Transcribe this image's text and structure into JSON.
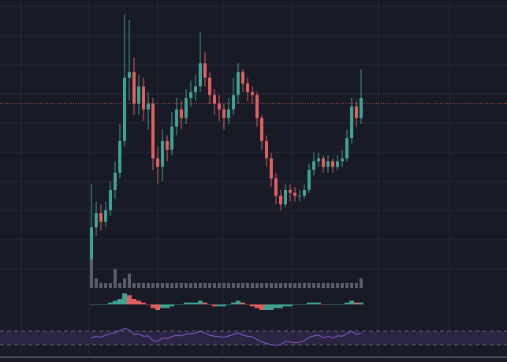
{
  "chart_data": [
    {
      "type": "candlestick",
      "grid": true,
      "ylim": [
        0,
        100
      ],
      "up_color": "#3fa394",
      "down_color": "#e0605f",
      "price_line": 64,
      "price_line_color": "#e0605f",
      "open": [
        5,
        21,
        26,
        23,
        27,
        34,
        40,
        51,
        73,
        75,
        64,
        70,
        62,
        64,
        45,
        42,
        51,
        48,
        56,
        62,
        59,
        66,
        68,
        70,
        78,
        73,
        67,
        64,
        62,
        59,
        62,
        67,
        75,
        71,
        68,
        67,
        59,
        51,
        45,
        38,
        32,
        29,
        34,
        33,
        32,
        32,
        34,
        41,
        44,
        45,
        42,
        44,
        42,
        44,
        45,
        52,
        63,
        59
      ],
      "high": [
        36,
        30,
        29,
        30,
        37,
        44,
        57,
        95,
        93,
        80,
        74,
        73,
        68,
        66,
        49,
        55,
        53,
        61,
        66,
        65,
        69,
        72,
        74,
        89,
        82,
        75,
        69,
        67,
        64,
        66,
        73,
        78,
        76,
        73,
        70,
        68,
        60,
        53,
        47,
        40,
        34,
        36,
        36,
        35,
        34,
        36,
        43,
        47,
        47,
        46,
        46,
        45,
        46,
        48,
        55,
        66,
        65,
        76
      ],
      "low": [
        4,
        18,
        20,
        21,
        25,
        31,
        38,
        49,
        65,
        60,
        60,
        58,
        55,
        41,
        36,
        37,
        44,
        46,
        53,
        55,
        57,
        63,
        65,
        68,
        70,
        64,
        60,
        58,
        55,
        57,
        60,
        64,
        68,
        65,
        64,
        56,
        48,
        42,
        35,
        29,
        27,
        28,
        30,
        30,
        30,
        31,
        33,
        39,
        42,
        40,
        40,
        40,
        41,
        42,
        44,
        50,
        56,
        57
      ],
      "close": [
        21,
        26,
        23,
        27,
        34,
        40,
        51,
        73,
        75,
        64,
        70,
        62,
        64,
        45,
        42,
        51,
        48,
        56,
        62,
        59,
        66,
        68,
        70,
        78,
        73,
        67,
        64,
        62,
        59,
        62,
        67,
        75,
        71,
        68,
        67,
        59,
        51,
        45,
        38,
        32,
        29,
        34,
        33,
        32,
        32,
        34,
        41,
        44,
        45,
        42,
        44,
        42,
        44,
        45,
        52,
        63,
        59,
        66
      ]
    },
    {
      "type": "volume",
      "ylim": [
        0,
        10
      ],
      "color": "#5a5d6b",
      "values": [
        6,
        2,
        1,
        1,
        1,
        4,
        1,
        2,
        3,
        1,
        1,
        1,
        1,
        1,
        1,
        1,
        1,
        1,
        1,
        1,
        1,
        1,
        1,
        1,
        1,
        1,
        1,
        1,
        1,
        1,
        1,
        1,
        1,
        1,
        1,
        1,
        1,
        1,
        1,
        1,
        1,
        1,
        1,
        1,
        1,
        1,
        1,
        1,
        1,
        1,
        1,
        1,
        1,
        1,
        1,
        1,
        1,
        2
      ]
    },
    {
      "type": "histogram",
      "ylim": [
        -6,
        6
      ],
      "up_color": "#3fa394",
      "down_color": "#e0605f",
      "values": [
        0,
        0,
        0,
        0,
        1,
        2,
        3,
        6,
        5,
        3,
        2,
        1,
        0,
        -2,
        -3,
        -2,
        -2,
        -1,
        0,
        0,
        1,
        1,
        1,
        2,
        1,
        0,
        -1,
        -1,
        -1,
        0,
        1,
        2,
        1,
        0,
        -1,
        -2,
        -3,
        -3,
        -3,
        -2,
        -2,
        -1,
        -1,
        0,
        0,
        0,
        1,
        1,
        1,
        0,
        0,
        0,
        0,
        0,
        1,
        2,
        1,
        1
      ]
    },
    {
      "type": "line",
      "ylim": [
        0,
        100
      ],
      "color": "#7e57c2",
      "band_color": "#2a2542",
      "levels": [
        70,
        30
      ],
      "values": [
        50,
        55,
        52,
        58,
        62,
        66,
        72,
        78,
        74,
        60,
        62,
        55,
        56,
        42,
        40,
        50,
        48,
        54,
        58,
        56,
        62,
        63,
        64,
        70,
        64,
        58,
        55,
        54,
        52,
        56,
        60,
        65,
        58,
        55,
        54,
        45,
        38,
        34,
        30,
        28,
        30,
        40,
        38,
        36,
        37,
        42,
        52,
        56,
        58,
        50,
        55,
        50,
        56,
        55,
        62,
        70,
        60,
        65
      ]
    }
  ]
}
